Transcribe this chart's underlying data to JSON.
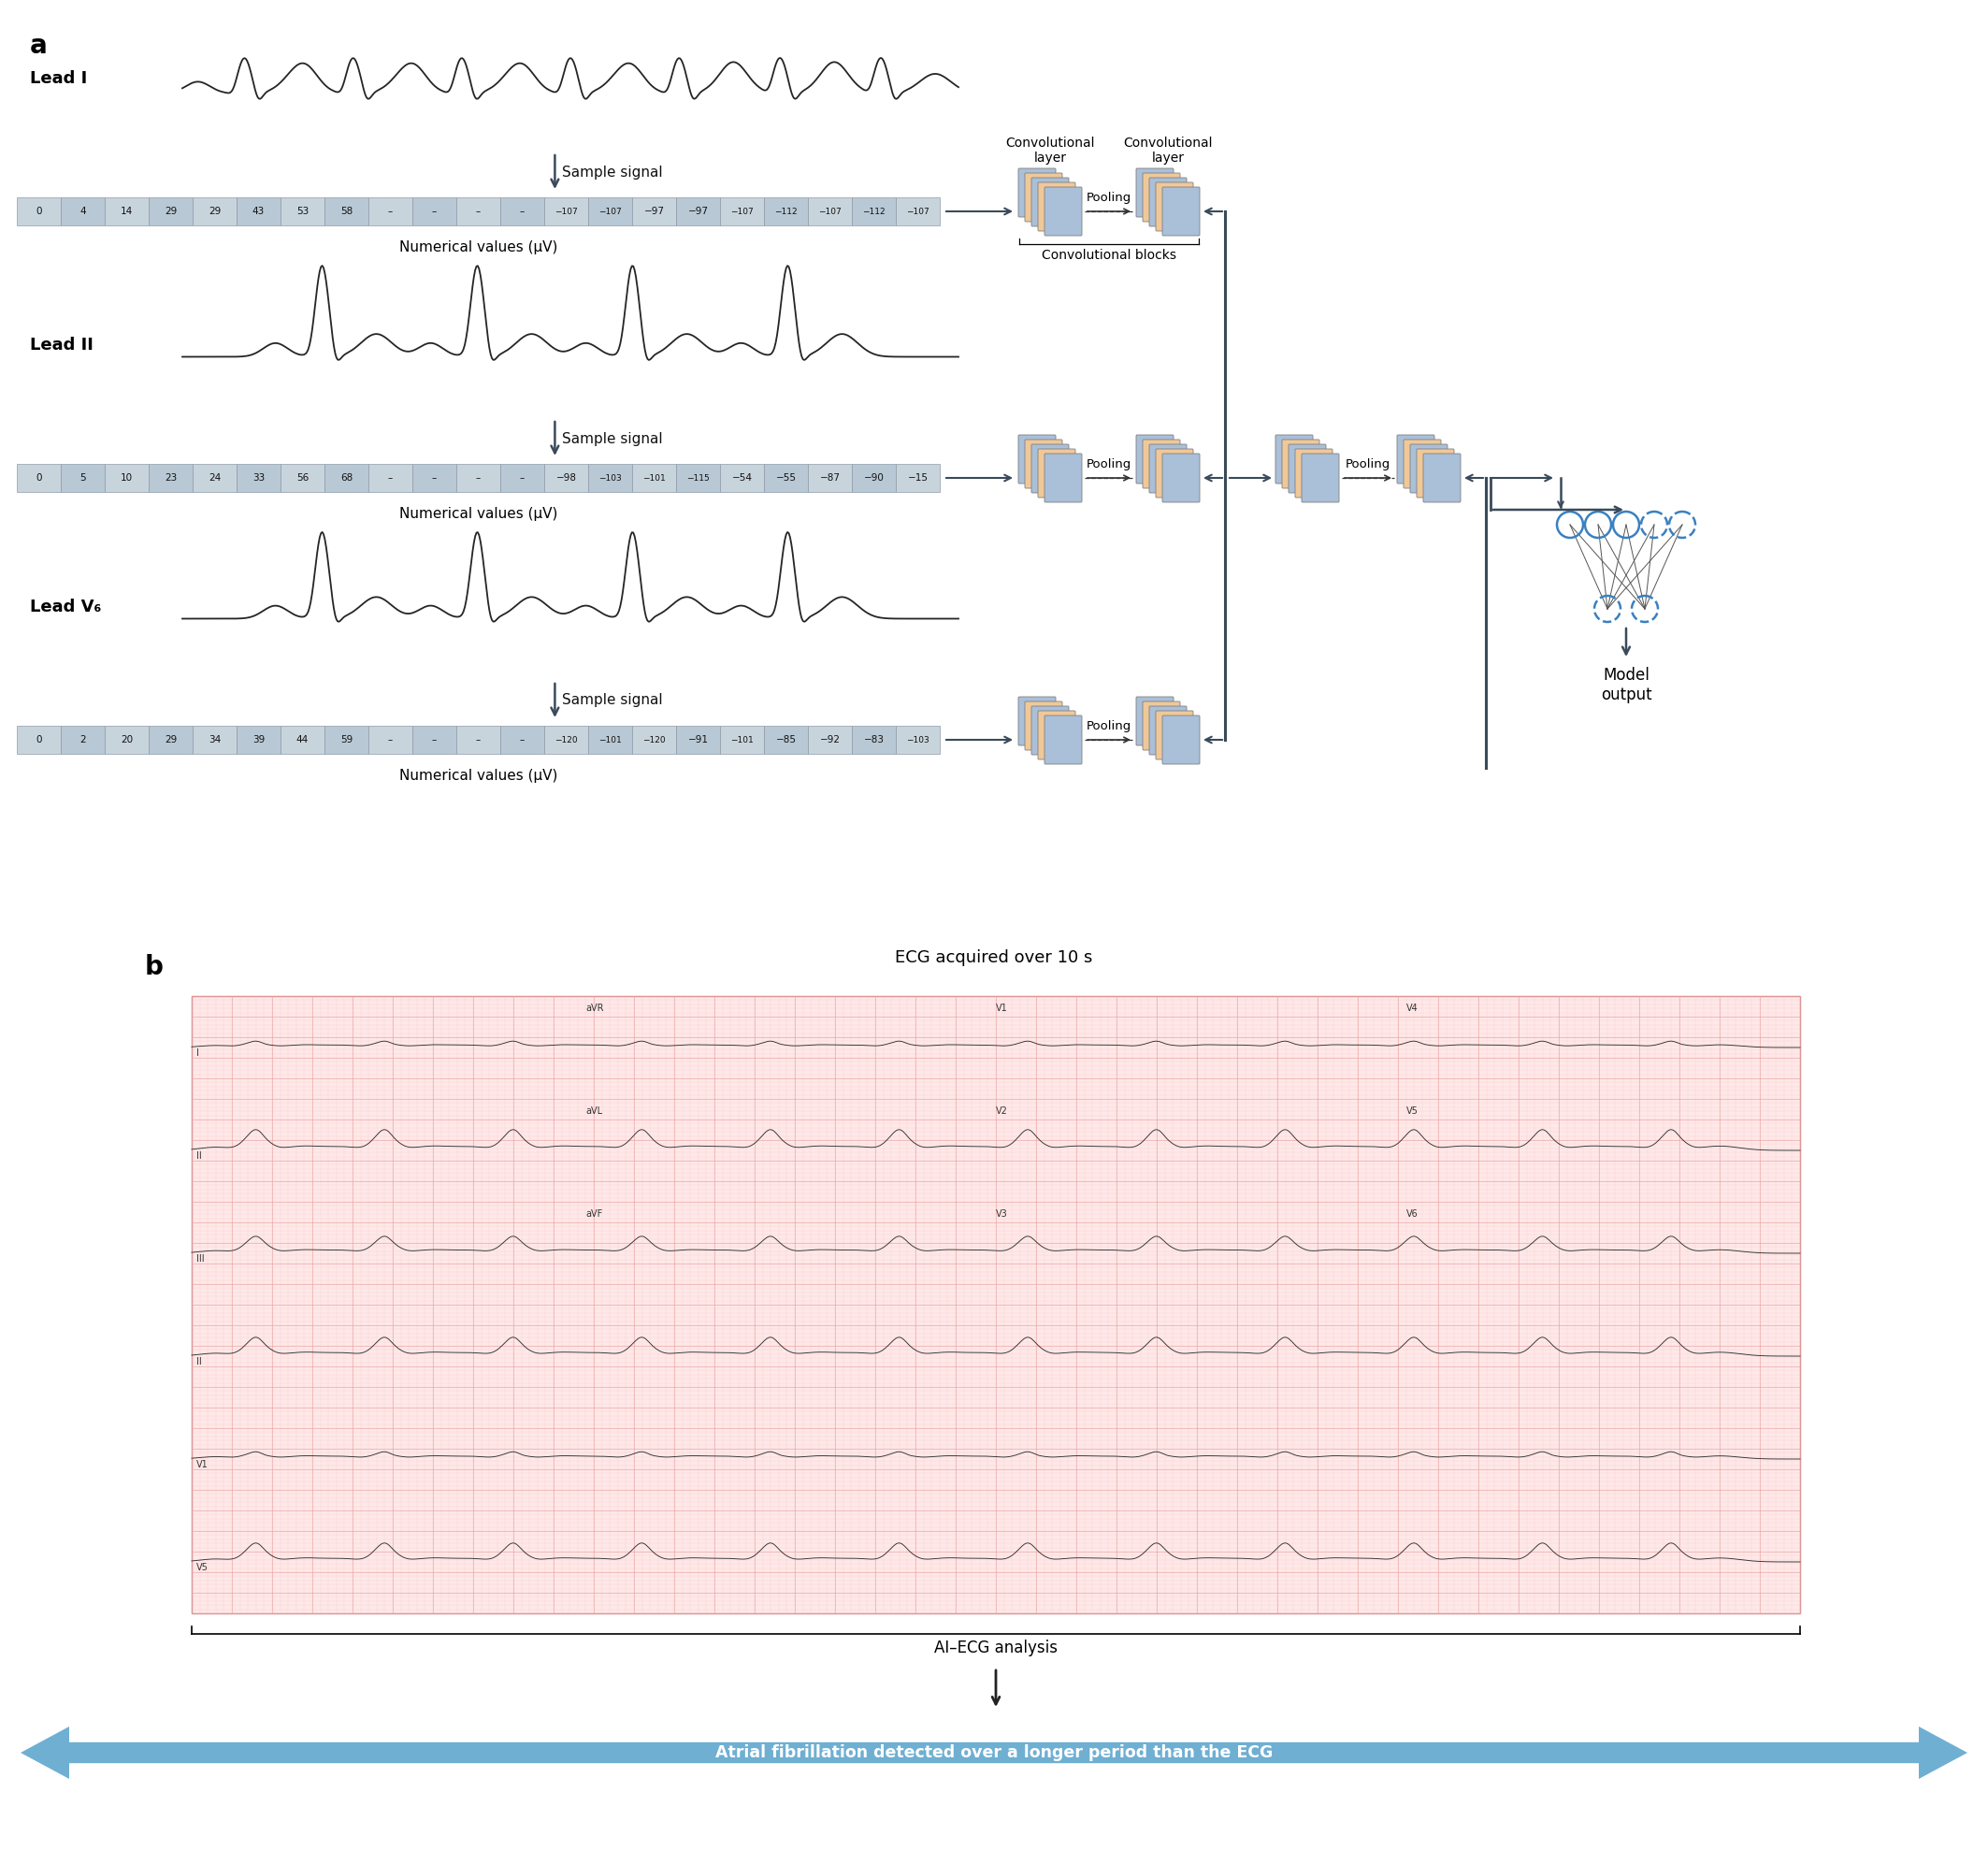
{
  "fig_width": 21.26,
  "fig_height": 19.93,
  "bg_color": "#ffffff",
  "lead_labels": [
    "Lead I",
    "Lead II",
    "Lead V₆"
  ],
  "sample_signal_label": "Sample signal",
  "numerical_label": "Numerical values (μV)",
  "conv_layer_label": "Convolutional\nlayer",
  "conv_blocks_label": "Convolutional blocks",
  "pooling_label": "Pooling",
  "model_output_label": "Model\noutput",
  "ecg_title": "ECG acquired over 10 s",
  "ai_ecg_label": "AI–ECG analysis",
  "afib_label": "Atrial fibrillation detected over a longer period than the ECG",
  "lead1_values": [
    "0",
    "4",
    "14",
    "29",
    "29",
    "43",
    "53",
    "58",
    "–",
    "–",
    "–",
    "–",
    "−107",
    "−107",
    "−97",
    "−97",
    "−107",
    "−112",
    "−107",
    "−112",
    "−107"
  ],
  "lead2_values": [
    "0",
    "5",
    "10",
    "23",
    "24",
    "33",
    "56",
    "68",
    "–",
    "–",
    "–",
    "–",
    "−98",
    "−103",
    "−101",
    "−115",
    "−54",
    "−55",
    "−87",
    "−90",
    "−15"
  ],
  "lead3_values": [
    "0",
    "2",
    "20",
    "29",
    "34",
    "39",
    "44",
    "59",
    "–",
    "–",
    "–",
    "–",
    "−120",
    "−101",
    "−120",
    "−91",
    "−101",
    "−85",
    "−92",
    "−83",
    "−103"
  ],
  "table_bg_even": "#c8d4dc",
  "table_bg_odd": "#b8c8d4",
  "conv_block_blue": "#aabfd8",
  "conv_block_orange": "#f0c898",
  "arrow_dark": "#3a4a5a",
  "neural_node_color": "#3a80c0",
  "ecg_bg": "#ffe8e8",
  "ecg_grid_major": "#e8a0a0",
  "ecg_grid_minor": "#f4c0c0",
  "ecg_trace": "#303030",
  "arrow_blue": "#5ba4cc"
}
